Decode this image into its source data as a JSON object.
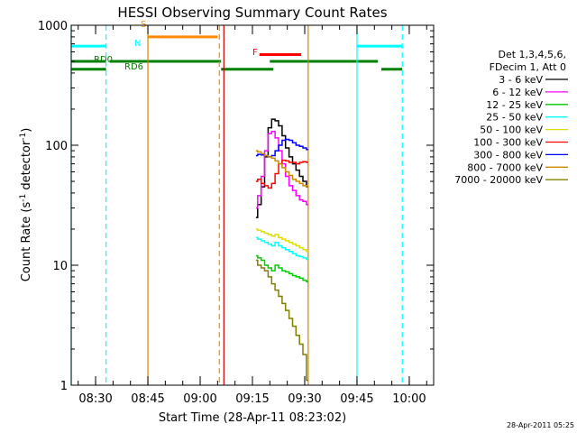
{
  "chart_data": {
    "type": "line",
    "title": "HESSI Observing Summary Count Rates",
    "xlabel": "Start Time (28-Apr-11 08:23:02)",
    "ylabel_main": "Count Rate (s",
    "ylabel_sup1": "-1",
    "ylabel_mid": " detector",
    "ylabel_sup2": "-1",
    "ylabel_end": ")",
    "y_scale": "log",
    "ylim": [
      1,
      1000
    ],
    "x_range_minutes": [
      503,
      607
    ],
    "x_ticks": [
      {
        "m": 510,
        "label": "08:30"
      },
      {
        "m": 525,
        "label": "08:45"
      },
      {
        "m": 540,
        "label": "09:00"
      },
      {
        "m": 555,
        "label": "09:15"
      },
      {
        "m": 570,
        "label": "09:30"
      },
      {
        "m": 585,
        "label": "09:45"
      },
      {
        "m": 600,
        "label": "10:00"
      }
    ],
    "y_ticks": [
      {
        "v": 1,
        "label": "1"
      },
      {
        "v": 10,
        "label": "10"
      },
      {
        "v": 100,
        "label": "100"
      },
      {
        "v": 1000,
        "label": "1000"
      }
    ],
    "legend": {
      "placement": "right",
      "header1": "Det 1,3,4,5,6,",
      "header2": "FDecim 1, Att 0"
    },
    "series": [
      {
        "name": "3 - 6 keV",
        "color": "#000000",
        "x": [
          556,
          557,
          558,
          559,
          560,
          561,
          562,
          563,
          564,
          565,
          566,
          567,
          568,
          569,
          570,
          571
        ],
        "y": [
          25,
          32,
          45,
          80,
          140,
          165,
          160,
          145,
          120,
          95,
          80,
          70,
          62,
          55,
          50,
          45
        ]
      },
      {
        "name": "6 - 12 keV",
        "color": "#ff00ff",
        "x": [
          556,
          557,
          558,
          559,
          560,
          561,
          562,
          563,
          564,
          565,
          566,
          567,
          568,
          569,
          570,
          571
        ],
        "y": [
          30,
          38,
          55,
          90,
          125,
          130,
          115,
          90,
          70,
          55,
          46,
          42,
          38,
          35,
          34,
          32
        ]
      },
      {
        "name": "12 - 25 keV",
        "color": "#00cc00",
        "x": [
          556,
          557,
          558,
          559,
          560,
          561,
          562,
          563,
          564,
          565,
          566,
          567,
          568,
          569,
          570,
          571
        ],
        "y": [
          12,
          11.5,
          11,
          10,
          9.5,
          9,
          10,
          9.5,
          9,
          8.8,
          8.5,
          8.2,
          8,
          7.8,
          7.5,
          7.3
        ]
      },
      {
        "name": "25 - 50 keV",
        "color": "#00ffff",
        "x": [
          556,
          557,
          558,
          559,
          560,
          561,
          562,
          563,
          564,
          565,
          566,
          567,
          568,
          569,
          570,
          571
        ],
        "y": [
          17,
          16.5,
          16,
          15.5,
          15,
          14.5,
          15.5,
          14.5,
          14,
          13.5,
          13,
          12.5,
          12,
          11.8,
          11.5,
          11.2
        ]
      },
      {
        "name": "50 - 100 keV",
        "color": "#dddd00",
        "x": [
          556,
          557,
          558,
          559,
          560,
          561,
          562,
          563,
          564,
          565,
          566,
          567,
          568,
          569,
          570,
          571
        ],
        "y": [
          20,
          19.5,
          19,
          18.5,
          18,
          17.5,
          18,
          17,
          16.5,
          16,
          15.5,
          15,
          14.5,
          14,
          13.5,
          13
        ]
      },
      {
        "name": "100 - 300 keV",
        "color": "#ff0000",
        "x": [
          556,
          557,
          558,
          559,
          560,
          561,
          562,
          563,
          564,
          565,
          566,
          567,
          568,
          569,
          570,
          571
        ],
        "y": [
          50,
          52,
          48,
          46,
          44,
          48,
          58,
          70,
          75,
          74,
          72,
          72,
          70,
          72,
          73,
          72
        ]
      },
      {
        "name": "300 - 800 keV",
        "color": "#0000ff",
        "x": [
          556,
          557,
          558,
          559,
          560,
          561,
          562,
          563,
          564,
          565,
          566,
          567,
          568,
          569,
          570,
          571
        ],
        "y": [
          82,
          84,
          83,
          82,
          80,
          82,
          90,
          100,
          110,
          112,
          110,
          105,
          100,
          98,
          95,
          92
        ]
      },
      {
        "name": "800 - 7000 keV",
        "color": "#cc8800",
        "x": [
          556,
          557,
          558,
          559,
          560,
          561,
          562,
          563,
          564,
          565,
          566,
          567,
          568,
          569,
          570,
          571
        ],
        "y": [
          90,
          88,
          85,
          82,
          80,
          78,
          74,
          70,
          65,
          60,
          56,
          52,
          50,
          48,
          46,
          45
        ]
      },
      {
        "name": "7000 - 20000 keV",
        "color": "#808000",
        "x": [
          556,
          557,
          558,
          559,
          560,
          561,
          562,
          563,
          564,
          565,
          566,
          567,
          568,
          569,
          570,
          571
        ],
        "y": [
          11,
          10,
          9.5,
          9,
          8,
          7,
          6.2,
          5.5,
          4.8,
          4.2,
          3.6,
          3.1,
          2.6,
          2.2,
          1.8,
          1.1
        ]
      }
    ],
    "flag_bars": [
      {
        "label": "N",
        "color": "#00ffff",
        "y": 670,
        "segments": [
          [
            503,
            513
          ],
          [
            585,
            598
          ]
        ]
      },
      {
        "label": "S",
        "color": "#ff8800",
        "y": 800,
        "segments": [
          [
            525,
            545
          ]
        ]
      },
      {
        "label": "F",
        "color": "#ff0000",
        "y": 570,
        "segments": [
          [
            557,
            569
          ]
        ]
      },
      {
        "label": "RD0",
        "color": "#008000",
        "y": 500,
        "segments": [
          [
            503,
            513
          ],
          [
            514,
            546
          ],
          [
            560,
            591
          ]
        ]
      },
      {
        "label": "RD6",
        "color": "#008000",
        "y": 430,
        "segments": [
          [
            503,
            513
          ],
          [
            546,
            561
          ],
          [
            592,
            598
          ]
        ]
      }
    ],
    "vlines": [
      {
        "m": 503,
        "color": "#00ffff",
        "dash": false
      },
      {
        "m": 513,
        "color": "#00ffff",
        "dash": true
      },
      {
        "m": 525,
        "color": "#cc8800",
        "dash": false
      },
      {
        "m": 545.5,
        "color": "#ff8800",
        "dash": true
      },
      {
        "m": 546.8,
        "color": "#cc0000",
        "dash": false
      },
      {
        "m": 571,
        "color": "#cc8800",
        "dash": false
      },
      {
        "m": 585,
        "color": "#00ffff",
        "dash": false
      },
      {
        "m": 598,
        "color": "#00ffff",
        "dash": true
      }
    ]
  },
  "footer_stamp": "28-Apr-2011 05:25"
}
